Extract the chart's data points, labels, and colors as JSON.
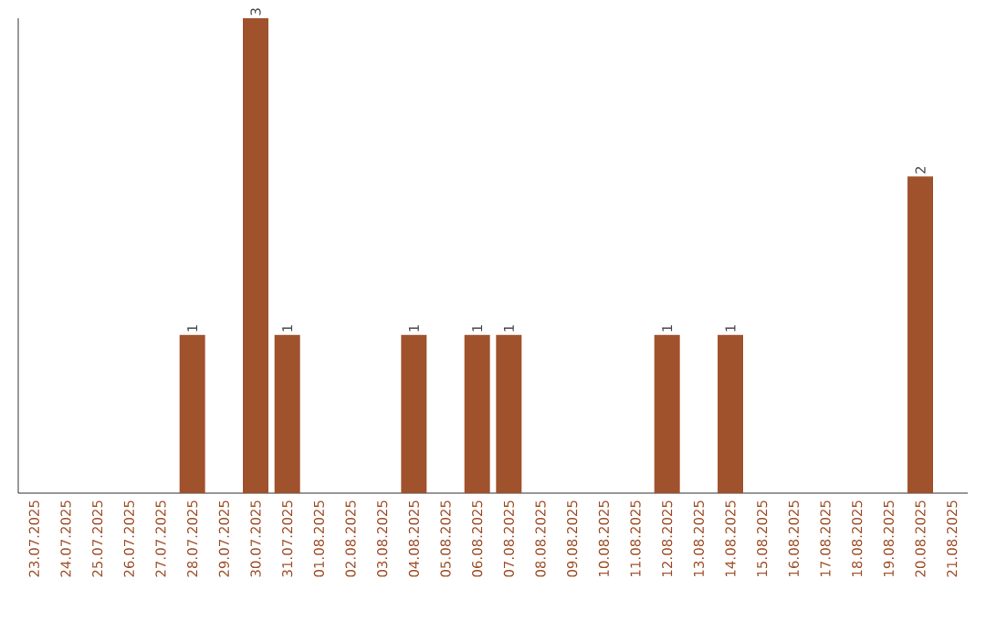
{
  "chart_data": {
    "type": "bar",
    "categories": [
      "23.07.2025",
      "24.07.2025",
      "25.07.2025",
      "26.07.2025",
      "27.07.2025",
      "28.07.2025",
      "29.07.2025",
      "30.07.2025",
      "31.07.2025",
      "01.08.2025",
      "02.08.2025",
      "03.08.2025",
      "04.08.2025",
      "05.08.2025",
      "06.08.2025",
      "07.08.2025",
      "08.08.2025",
      "09.08.2025",
      "10.08.2025",
      "11.08.2025",
      "12.08.2025",
      "13.08.2025",
      "14.08.2025",
      "15.08.2025",
      "16.08.2025",
      "17.08.2025",
      "18.08.2025",
      "19.08.2025",
      "20.08.2025",
      "21.08.2025"
    ],
    "values": [
      0,
      0,
      0,
      0,
      0,
      1,
      0,
      3,
      1,
      0,
      0,
      0,
      1,
      0,
      1,
      1,
      0,
      0,
      0,
      0,
      1,
      0,
      1,
      0,
      0,
      0,
      0,
      0,
      2,
      0
    ],
    "value_labels": [
      null,
      null,
      null,
      null,
      null,
      "1",
      null,
      "3",
      "1",
      null,
      null,
      null,
      "1",
      null,
      "1",
      "1",
      null,
      null,
      null,
      null,
      "1",
      null,
      "1",
      null,
      null,
      null,
      null,
      null,
      "2",
      null
    ],
    "color": "#a0522d",
    "ylim": [
      0,
      3
    ],
    "tick_labels": "x"
  }
}
